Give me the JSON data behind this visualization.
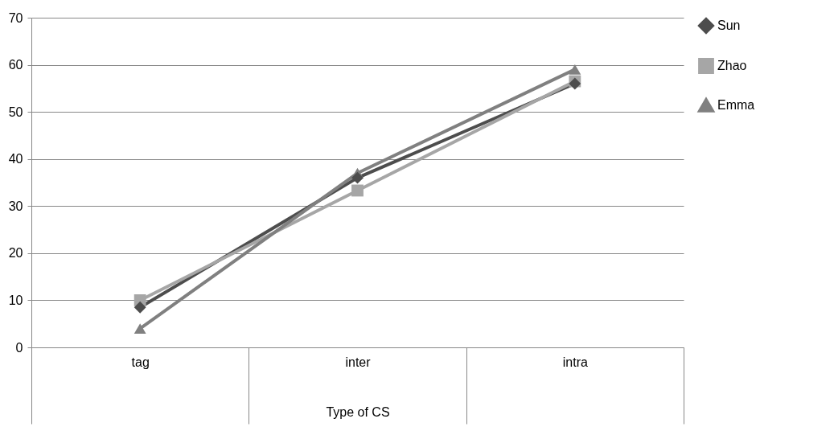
{
  "chart_data": {
    "type": "line",
    "categories": [
      "tag",
      "inter",
      "intra"
    ],
    "xlabel": "Type of CS",
    "series": [
      {
        "name": "Sun",
        "color": "#4d4d4d",
        "marker": "diamond",
        "values": [
          8.5,
          36,
          56
        ]
      },
      {
        "name": "Zhao",
        "color": "#a6a6a6",
        "marker": "square",
        "values": [
          10,
          33.3,
          56.5
        ]
      },
      {
        "name": "Emma",
        "color": "#808080",
        "marker": "triangle",
        "values": [
          4,
          37,
          59
        ]
      }
    ],
    "ylim": [
      0,
      70
    ],
    "yticks": [
      0,
      10,
      20,
      30,
      40,
      50,
      60,
      70
    ],
    "grid": "y",
    "legend": "right"
  }
}
